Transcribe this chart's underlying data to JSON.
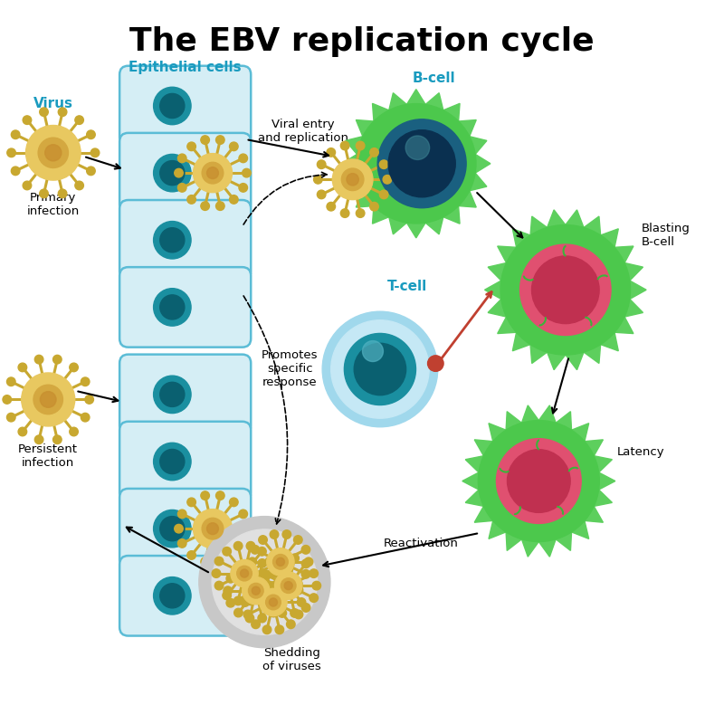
{
  "title": "The EBV replication cycle",
  "title_fontsize": 26,
  "title_color": "#000000",
  "background_color": "#ffffff",
  "labels": {
    "virus": "Virus",
    "epithelial": "Epithelial cells",
    "primary_infection": "Primary\ninfection",
    "viral_entry": "Viral entry\nand replication",
    "bcell": "B-cell",
    "blasting": "Blasting\nB-cell",
    "tcell": "T-cell",
    "promotes": "Promotes\nspecific\nresponse",
    "latency": "Latency",
    "reactivation": "Reactivation",
    "shedding": "Shedding\nof viruses",
    "persistent": "Persistent\ninfection"
  },
  "colors": {
    "background_color": "#ffffff",
    "epithelial_bg": "#d5eef5",
    "epithelial_border": "#5bbcd6",
    "epithelial_label": "#1a9bbf",
    "cell_nucleus_teal": "#1a8fa0",
    "cell_nucleus_dark": "#0a6070",
    "virus_body": "#e8c860",
    "virus_spike": "#c8a830",
    "virus_inner": "#d4a840",
    "bcell_outer": "#5dcf5d",
    "bcell_body": "#4cc84c",
    "bcell_nucleus": "#1a6080",
    "bcell_nucleus_dark": "#0a3050",
    "bcell_nucleus_hl": "#3a8090",
    "tcell_outer": "#a0d8ec",
    "tcell_inner_ring": "#c5e8f5",
    "tcell_nucleus": "#1a8fa0",
    "tcell_nucleus_dark": "#0a6070",
    "tcell_nucleus_hl": "#50b0c0",
    "blast_nucleus": "#e05070",
    "blast_nucleus_inner": "#c03050",
    "blast_mark": "#3ab53a",
    "shedding_outer": "#c8c8c8",
    "shedding_body": "#e0e0e0",
    "connector_nub": "#c04030",
    "arrow_color": "#000000",
    "label_teal": "#1a9bbf",
    "label_black": "#000000"
  }
}
